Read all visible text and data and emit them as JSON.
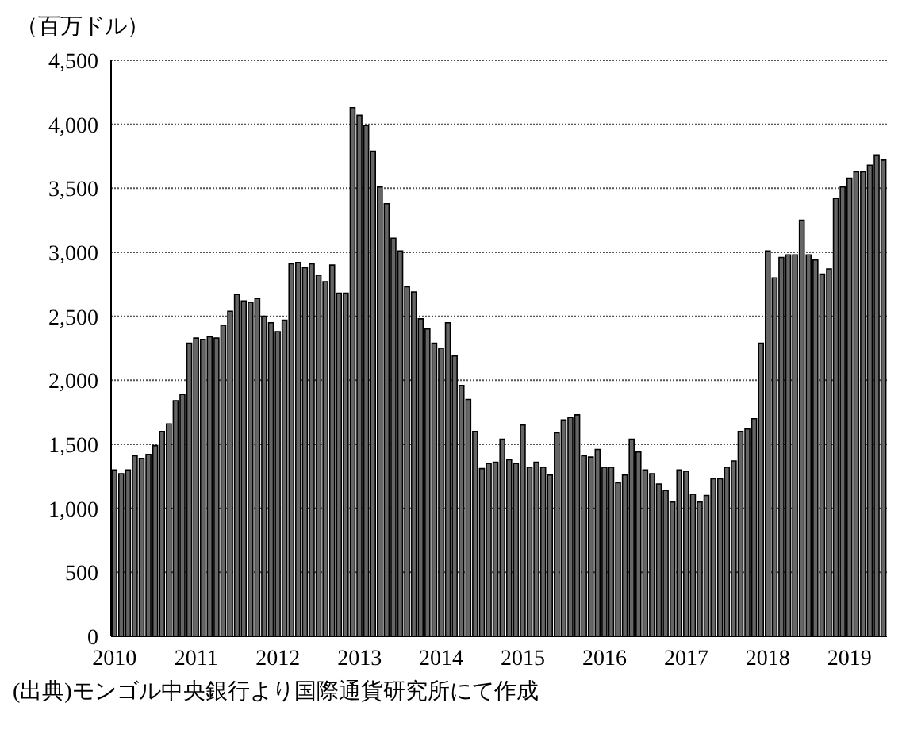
{
  "chart_data": {
    "type": "bar",
    "ylabel": "（百万ドル）",
    "categories": [
      "2010",
      null,
      null,
      null,
      null,
      null,
      null,
      null,
      null,
      null,
      null,
      null,
      "2011",
      null,
      null,
      null,
      null,
      null,
      null,
      null,
      null,
      null,
      null,
      null,
      "2012",
      null,
      null,
      null,
      null,
      null,
      null,
      null,
      null,
      null,
      null,
      null,
      "2013",
      null,
      null,
      null,
      null,
      null,
      null,
      null,
      null,
      null,
      null,
      null,
      "2014",
      null,
      null,
      null,
      null,
      null,
      null,
      null,
      null,
      null,
      null,
      null,
      "2015",
      null,
      null,
      null,
      null,
      null,
      null,
      null,
      null,
      null,
      null,
      null,
      "2016",
      null,
      null,
      null,
      null,
      null,
      null,
      null,
      null,
      null,
      null,
      null,
      "2017",
      null,
      null,
      null,
      null,
      null,
      null,
      null,
      null,
      null,
      null,
      null,
      "2018",
      null,
      null,
      null,
      null,
      null,
      null,
      null,
      null,
      null,
      null,
      null,
      "2019",
      null,
      null,
      null,
      null,
      null
    ],
    "values": [
      1300,
      1270,
      1300,
      1410,
      1390,
      1420,
      1490,
      1600,
      1660,
      1840,
      1890,
      2290,
      2330,
      2320,
      2340,
      2330,
      2430,
      2540,
      2670,
      2620,
      2610,
      2640,
      2500,
      2450,
      2380,
      2470,
      2910,
      2920,
      2880,
      2910,
      2820,
      2770,
      2900,
      2680,
      2680,
      4130,
      4070,
      3990,
      3790,
      3510,
      3380,
      3110,
      3010,
      2730,
      2690,
      2480,
      2400,
      2290,
      2250,
      2450,
      2190,
      1960,
      1850,
      1600,
      1310,
      1350,
      1360,
      1540,
      1380,
      1350,
      1650,
      1320,
      1360,
      1320,
      1260,
      1590,
      1690,
      1710,
      1730,
      1410,
      1400,
      1460,
      1320,
      1320,
      1200,
      1260,
      1540,
      1440,
      1300,
      1270,
      1190,
      1140,
      1050,
      1300,
      1290,
      1110,
      1050,
      1100,
      1230,
      1230,
      1320,
      1370,
      1600,
      1620,
      1700,
      2290,
      3010,
      2800,
      2960,
      2980,
      2980,
      3250,
      2980,
      2940,
      2830,
      2870,
      3420,
      3510,
      3580,
      3630,
      3630,
      3680,
      3760,
      3720
    ],
    "color": "#666666",
    "ylim": [
      0,
      4500
    ],
    "yticks": [
      0,
      500,
      {
        "value": 1000,
        "label": "1,000"
      },
      {
        "value": 1500,
        "label": "1,500"
      },
      {
        "value": 2000,
        "label": "2,000"
      },
      {
        "value": 2500,
        "label": "2,500"
      },
      {
        "value": 3000,
        "label": "3,000"
      },
      {
        "value": 3500,
        "label": "3,500"
      },
      {
        "value": 4000,
        "label": "4,000"
      },
      {
        "value": 4500,
        "label": "4,500"
      }
    ],
    "grid": "y",
    "annotations": [
      "(出典)モンゴル中央銀行より国際通貨研究所にて作成"
    ]
  }
}
